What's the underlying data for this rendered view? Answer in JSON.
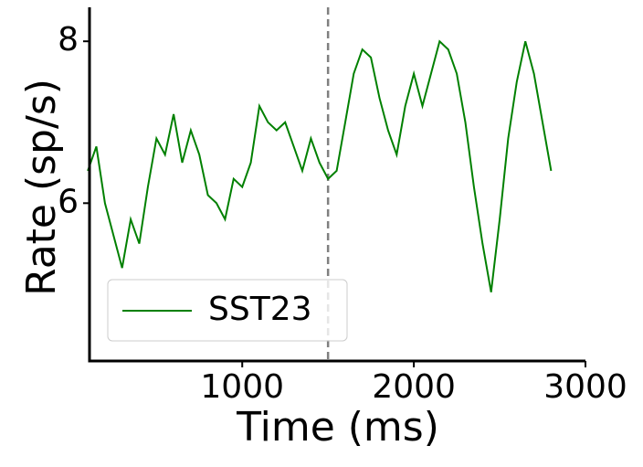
{
  "chart_data": {
    "type": "line",
    "xlabel": "Time (ms)",
    "ylabel": "Rate (sp/s)",
    "x": [
      100,
      150,
      200,
      250,
      300,
      350,
      400,
      450,
      500,
      550,
      600,
      650,
      700,
      750,
      800,
      850,
      900,
      950,
      1000,
      1050,
      1100,
      1150,
      1200,
      1250,
      1300,
      1350,
      1400,
      1450,
      1500,
      1550,
      1600,
      1650,
      1700,
      1750,
      1800,
      1850,
      1900,
      1950,
      2000,
      2050,
      2100,
      2150,
      2200,
      2250,
      2300,
      2350,
      2400,
      2450,
      2500,
      2550,
      2600,
      2650,
      2700,
      2750,
      2800
    ],
    "series": [
      {
        "name": "SST23",
        "color": "#008000",
        "values": [
          6.4,
          6.7,
          6.0,
          5.6,
          5.2,
          5.8,
          5.5,
          6.2,
          6.8,
          6.6,
          7.1,
          6.5,
          6.9,
          6.6,
          6.1,
          6.0,
          5.8,
          6.3,
          6.2,
          6.5,
          7.2,
          7.0,
          6.9,
          7.0,
          6.7,
          6.4,
          6.8,
          6.5,
          6.3,
          6.4,
          7.0,
          7.6,
          7.9,
          7.8,
          7.3,
          6.9,
          6.6,
          7.2,
          7.6,
          7.2,
          7.6,
          8.0,
          7.9,
          7.6,
          7.0,
          6.2,
          5.5,
          4.9,
          5.8,
          6.8,
          7.5,
          8.0,
          7.6,
          7.0,
          6.4
        ]
      }
    ],
    "reference_line_x": 1500,
    "reference_line_color": "#808080",
    "xlim": [
      110,
      3000
    ],
    "ylim": [
      4.05,
      8.42
    ],
    "xticks": [
      1000,
      2000,
      3000
    ],
    "yticks": [
      6,
      8
    ],
    "legend": "lower left"
  }
}
